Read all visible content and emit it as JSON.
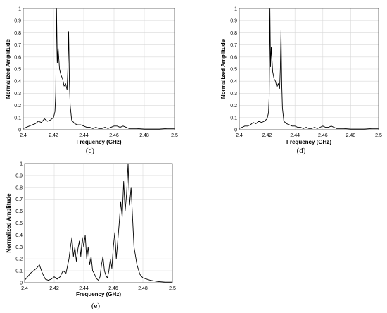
{
  "chart_data": [
    {
      "id": "c",
      "type": "line",
      "caption": "(c)",
      "xlabel": "Frequency (GHz)",
      "ylabel": "Normalized Amplitude",
      "xlim": [
        2.4,
        2.5
      ],
      "ylim": [
        0,
        1
      ],
      "xticks": [
        "2.4",
        "2.42",
        "2.44",
        "2.46",
        "2.48",
        "2.5"
      ],
      "yticks": [
        "0",
        "0.1",
        "0.2",
        "0.3",
        "0.4",
        "0.5",
        "0.6",
        "0.7",
        "0.8",
        "0.9",
        "1"
      ],
      "grid": true,
      "series": [
        {
          "x": [
            2.4,
            2.402,
            2.404,
            2.406,
            2.408,
            2.41,
            2.412,
            2.414,
            2.416,
            2.418,
            2.42,
            2.421,
            2.4215,
            2.422,
            2.4225,
            2.423,
            2.424,
            2.425,
            2.426,
            2.427,
            2.428,
            2.429,
            2.4295,
            2.43,
            2.4305,
            2.431,
            2.432,
            2.434,
            2.436,
            2.438,
            2.44,
            2.442,
            2.444,
            2.446,
            2.448,
            2.45,
            2.452,
            2.454,
            2.456,
            2.458,
            2.46,
            2.462,
            2.464,
            2.466,
            2.468,
            2.47,
            2.475,
            2.48,
            2.485,
            2.49,
            2.495,
            2.5
          ],
          "y": [
            0.01,
            0.02,
            0.03,
            0.04,
            0.05,
            0.07,
            0.06,
            0.09,
            0.07,
            0.08,
            0.1,
            0.15,
            0.3,
            1.0,
            0.55,
            0.68,
            0.5,
            0.45,
            0.42,
            0.36,
            0.38,
            0.33,
            0.5,
            0.81,
            0.4,
            0.2,
            0.08,
            0.05,
            0.04,
            0.04,
            0.03,
            0.02,
            0.02,
            0.01,
            0.02,
            0.01,
            0.01,
            0.02,
            0.01,
            0.02,
            0.03,
            0.03,
            0.02,
            0.03,
            0.02,
            0.01,
            0.01,
            0.005,
            0.005,
            0.005,
            0.01,
            0.01
          ]
        }
      ]
    },
    {
      "id": "d",
      "type": "line",
      "caption": "(d)",
      "xlabel": "Frequency (GHz)",
      "ylabel": "Normalized Amplitude",
      "xlim": [
        2.4,
        2.5
      ],
      "ylim": [
        0,
        1
      ],
      "xticks": [
        "2.4",
        "2.42",
        "2.44",
        "2.46",
        "2.48",
        "2.5"
      ],
      "yticks": [
        "0",
        "0.1",
        "0.2",
        "0.3",
        "0.4",
        "0.5",
        "0.6",
        "0.7",
        "0.8",
        "0.9",
        "1"
      ],
      "grid": true,
      "series": [
        {
          "x": [
            2.4,
            2.402,
            2.404,
            2.406,
            2.408,
            2.41,
            2.412,
            2.414,
            2.416,
            2.418,
            2.42,
            2.421,
            2.4215,
            2.422,
            2.4225,
            2.423,
            2.424,
            2.425,
            2.426,
            2.427,
            2.428,
            2.429,
            2.4295,
            2.43,
            2.4305,
            2.431,
            2.432,
            2.434,
            2.436,
            2.438,
            2.44,
            2.442,
            2.444,
            2.446,
            2.448,
            2.45,
            2.452,
            2.454,
            2.456,
            2.458,
            2.46,
            2.462,
            2.464,
            2.466,
            2.468,
            2.47,
            2.475,
            2.48,
            2.485,
            2.49,
            2.495,
            2.5
          ],
          "y": [
            0.01,
            0.02,
            0.03,
            0.03,
            0.04,
            0.06,
            0.05,
            0.07,
            0.06,
            0.07,
            0.09,
            0.14,
            0.28,
            1.0,
            0.52,
            0.68,
            0.48,
            0.42,
            0.4,
            0.35,
            0.38,
            0.34,
            0.5,
            0.82,
            0.38,
            0.18,
            0.07,
            0.05,
            0.04,
            0.03,
            0.03,
            0.02,
            0.02,
            0.01,
            0.02,
            0.01,
            0.01,
            0.02,
            0.01,
            0.02,
            0.03,
            0.02,
            0.02,
            0.03,
            0.02,
            0.01,
            0.01,
            0.005,
            0.005,
            0.005,
            0.01,
            0.01
          ]
        }
      ]
    },
    {
      "id": "e",
      "type": "line",
      "caption": "(e)",
      "xlabel": "Frequency (GHz)",
      "ylabel": "Normalized Amplitude",
      "xlim": [
        2.4,
        2.5
      ],
      "ylim": [
        0,
        1
      ],
      "xticks": [
        "2.4",
        "2.42",
        "2.44",
        "2.46",
        "2.48",
        "2.5"
      ],
      "yticks": [
        "0",
        "0.1",
        "0.2",
        "0.3",
        "0.4",
        "0.5",
        "0.6",
        "0.7",
        "0.8",
        "0.9",
        "1"
      ],
      "grid": true,
      "series": [
        {
          "x": [
            2.4,
            2.402,
            2.404,
            2.406,
            2.408,
            2.41,
            2.412,
            2.414,
            2.416,
            2.418,
            2.42,
            2.422,
            2.424,
            2.426,
            2.428,
            2.43,
            2.431,
            2.432,
            2.433,
            2.434,
            2.435,
            2.436,
            2.437,
            2.438,
            2.439,
            2.44,
            2.441,
            2.442,
            2.443,
            2.444,
            2.445,
            2.446,
            2.447,
            2.448,
            2.449,
            2.45,
            2.451,
            2.452,
            2.453,
            2.454,
            2.455,
            2.456,
            2.457,
            2.458,
            2.459,
            2.46,
            2.461,
            2.462,
            2.463,
            2.464,
            2.465,
            2.466,
            2.467,
            2.468,
            2.469,
            2.47,
            2.471,
            2.472,
            2.474,
            2.476,
            2.478,
            2.48,
            2.485,
            2.49,
            2.495,
            2.5
          ],
          "y": [
            0.02,
            0.05,
            0.08,
            0.1,
            0.12,
            0.15,
            0.08,
            0.03,
            0.02,
            0.03,
            0.05,
            0.03,
            0.05,
            0.1,
            0.08,
            0.2,
            0.3,
            0.38,
            0.22,
            0.3,
            0.18,
            0.28,
            0.35,
            0.22,
            0.38,
            0.3,
            0.4,
            0.2,
            0.3,
            0.15,
            0.22,
            0.1,
            0.08,
            0.05,
            0.03,
            0.02,
            0.05,
            0.15,
            0.22,
            0.1,
            0.06,
            0.04,
            0.1,
            0.2,
            0.12,
            0.3,
            0.42,
            0.2,
            0.35,
            0.5,
            0.68,
            0.55,
            0.85,
            0.6,
            0.75,
            1.0,
            0.65,
            0.8,
            0.3,
            0.15,
            0.07,
            0.04,
            0.02,
            0.01,
            0.005,
            0.005
          ]
        }
      ]
    }
  ]
}
